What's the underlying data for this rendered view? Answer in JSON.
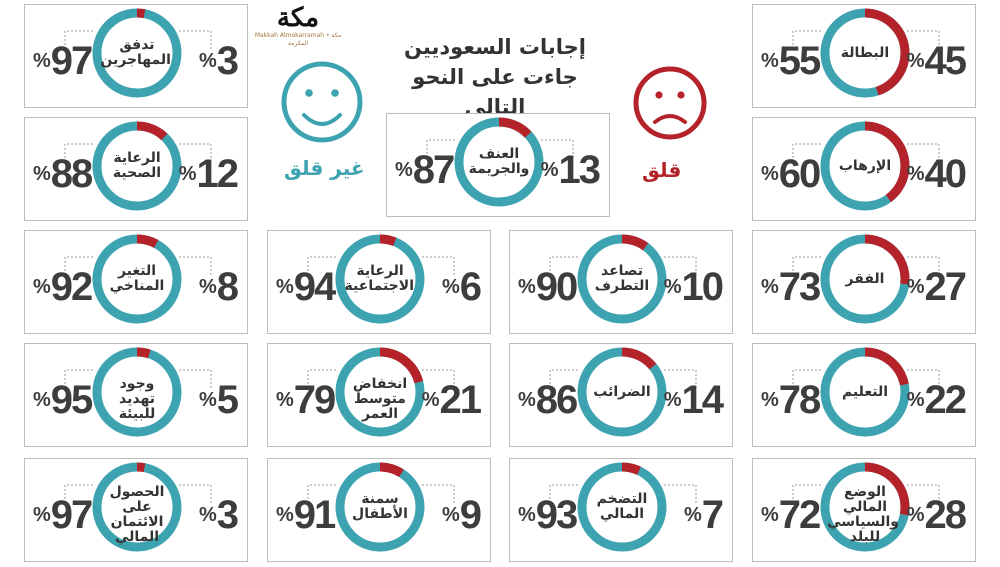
{
  "header": {
    "title_line1": "إجابات السعوديين",
    "title_line2": "جاءت على النحو التالي",
    "worried_label": "قلق",
    "not_worried_label": "غير قلق",
    "logo_text": "مكة",
    "logo_subtext": "Makkah Almokarramah • مكة المكرمة"
  },
  "colors": {
    "worried": "#b5232a",
    "not_worried": "#3ea3b1",
    "text": "#3d3d3d",
    "border": "#bdbdbd"
  },
  "chart_data": {
    "type": "pie",
    "percent_symbol": "%",
    "items": [
      {
        "label": "البطالة",
        "worried": 45,
        "not_worried": 55
      },
      {
        "label": "تدفق المهاجرين",
        "worried": 3,
        "not_worried": 97
      },
      {
        "label": "الإرهاب",
        "worried": 40,
        "not_worried": 60
      },
      {
        "label": "العنف والجريمة",
        "worried": 13,
        "not_worried": 87
      },
      {
        "label": "الرعاية الصحية",
        "worried": 12,
        "not_worried": 88
      },
      {
        "label": "الفقر",
        "worried": 27,
        "not_worried": 73
      },
      {
        "label": "تصاعد التطرف",
        "worried": 10,
        "not_worried": 90
      },
      {
        "label": "الرعاية الاجتماعية",
        "worried": 6,
        "not_worried": 94
      },
      {
        "label": "التغير المناخي",
        "worried": 8,
        "not_worried": 92
      },
      {
        "label": "التعليم",
        "worried": 22,
        "not_worried": 78
      },
      {
        "label": "الضرائب",
        "worried": 14,
        "not_worried": 86
      },
      {
        "label": "انخفاض متوسط العمر",
        "worried": 21,
        "not_worried": 79
      },
      {
        "label": "وجود تهديد للبيئة",
        "worried": 5,
        "not_worried": 95
      },
      {
        "label": "الوضع المالي والسياسي للبلد",
        "worried": 28,
        "not_worried": 72
      },
      {
        "label": "التضخم المالي",
        "worried": 7,
        "not_worried": 93
      },
      {
        "label": "سمنة الأطفال",
        "worried": 9,
        "not_worried": 91
      },
      {
        "label": "الحصول على الائتمان المالي",
        "worried": 3,
        "not_worried": 97
      }
    ]
  }
}
